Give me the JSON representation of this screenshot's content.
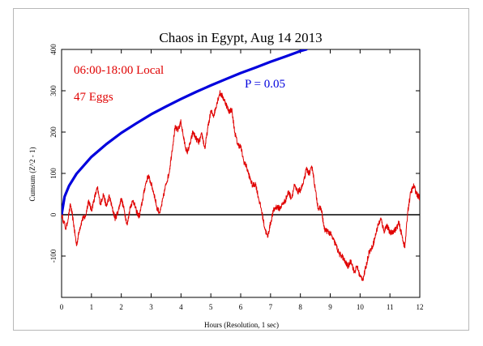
{
  "chart_data": {
    "type": "line",
    "title": "Chaos in Egypt, Aug 14 2013",
    "xlabel": "Hours (Resolution, 1 sec)",
    "ylabel": "Cumsum (Z^2 - 1)",
    "xlim": [
      0,
      12
    ],
    "ylim": [
      -200,
      400
    ],
    "x_ticks": [
      0,
      1,
      2,
      3,
      4,
      5,
      6,
      7,
      8,
      9,
      10,
      11,
      12
    ],
    "y_ticks": [
      -100,
      0,
      100,
      200,
      300,
      400
    ],
    "grid": false,
    "annotations": {
      "time_range": "06:00-18:00 Local",
      "eggs": "47 Eggs",
      "p_label": "P = 0.05"
    },
    "colors": {
      "cumsum": "#e00000",
      "probability": "#0000dd",
      "zero_line": "#000000",
      "annotation_red": "#e00000",
      "annotation_blue": "#0000dd"
    },
    "series": [
      {
        "key": "cumsum",
        "x": [
          0,
          0.15,
          0.3,
          0.4,
          0.5,
          0.6,
          0.7,
          0.8,
          0.9,
          1.0,
          1.1,
          1.2,
          1.3,
          1.4,
          1.5,
          1.6,
          1.7,
          1.8,
          1.9,
          2.0,
          2.1,
          2.2,
          2.3,
          2.4,
          2.5,
          2.6,
          2.7,
          2.8,
          2.9,
          3.0,
          3.1,
          3.2,
          3.3,
          3.4,
          3.5,
          3.6,
          3.7,
          3.8,
          3.9,
          4.0,
          4.1,
          4.2,
          4.3,
          4.4,
          4.5,
          4.6,
          4.7,
          4.8,
          4.9,
          5.0,
          5.1,
          5.2,
          5.3,
          5.4,
          5.5,
          5.6,
          5.7,
          5.8,
          5.9,
          6.0,
          6.1,
          6.2,
          6.3,
          6.4,
          6.5,
          6.6,
          6.7,
          6.8,
          6.9,
          7.0,
          7.1,
          7.2,
          7.3,
          7.4,
          7.5,
          7.6,
          7.7,
          7.8,
          7.9,
          8.0,
          8.1,
          8.2,
          8.3,
          8.4,
          8.5,
          8.6,
          8.7,
          8.8,
          8.9,
          9.0,
          9.1,
          9.2,
          9.3,
          9.4,
          9.5,
          9.6,
          9.7,
          9.8,
          9.9,
          10.0,
          10.1,
          10.2,
          10.3,
          10.4,
          10.5,
          10.6,
          10.7,
          10.8,
          10.9,
          11.0,
          11.1,
          11.2,
          11.3,
          11.4,
          11.5,
          11.6,
          11.7,
          11.8,
          11.9,
          12.0
        ],
        "y": [
          0,
          -35,
          25,
          -20,
          -75,
          -35,
          -10,
          -5,
          35,
          10,
          40,
          65,
          25,
          50,
          20,
          45,
          15,
          -10,
          10,
          40,
          10,
          -25,
          20,
          35,
          10,
          -5,
          30,
          70,
          95,
          75,
          50,
          15,
          5,
          40,
          75,
          100,
          155,
          210,
          205,
          225,
          180,
          150,
          170,
          200,
          185,
          175,
          195,
          160,
          210,
          250,
          240,
          270,
          295,
          285,
          270,
          250,
          255,
          200,
          170,
          165,
          130,
          115,
          90,
          70,
          75,
          40,
          10,
          -30,
          -55,
          -20,
          10,
          20,
          15,
          25,
          35,
          55,
          40,
          70,
          55,
          60,
          75,
          110,
          100,
          115,
          60,
          15,
          15,
          -35,
          -40,
          -45,
          -60,
          -75,
          -95,
          -100,
          -115,
          -125,
          -110,
          -140,
          -125,
          -150,
          -155,
          -125,
          -90,
          -80,
          -55,
          -25,
          -10,
          -40,
          -25,
          -45,
          -40,
          -35,
          -20,
          -50,
          -80,
          10,
          55,
          70,
          50,
          40
        ]
      },
      {
        "key": "probability",
        "x": [
          0,
          0.1,
          0.25,
          0.5,
          1,
          1.5,
          2,
          2.5,
          3,
          3.5,
          4,
          4.5,
          5,
          5.5,
          6,
          6.5,
          7,
          7.5,
          8,
          8.2
        ],
        "y": [
          0,
          44,
          70,
          99,
          140,
          171,
          198,
          221,
          243,
          262,
          280,
          297,
          313,
          328,
          343,
          356,
          370,
          383,
          396,
          400
        ]
      }
    ]
  }
}
